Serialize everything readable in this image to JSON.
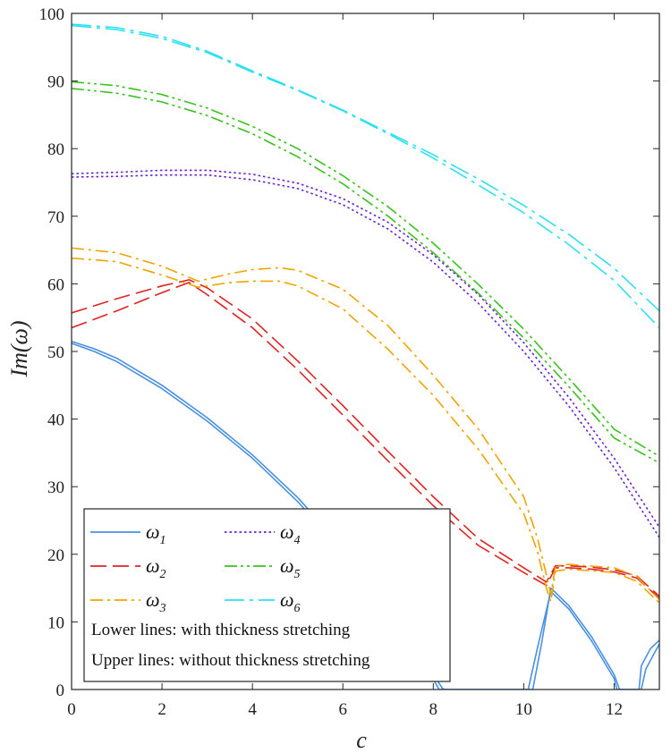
{
  "chart_data": {
    "type": "line",
    "xlabel": "c",
    "ylabel": "Im(ω)",
    "xlim": [
      0,
      13
    ],
    "ylim": [
      0,
      100
    ],
    "xticks": [
      0,
      2,
      4,
      6,
      8,
      10,
      12
    ],
    "yticks": [
      0,
      10,
      20,
      30,
      40,
      50,
      60,
      70,
      80,
      90,
      100
    ],
    "grid": false,
    "legend_position": "bottom-left",
    "notes": [
      "Lower lines: with thickness stretching",
      "Upper lines: without thickness stretching"
    ],
    "series": [
      {
        "name": "ω1",
        "symbol": "ω",
        "sub": "1",
        "color": "#4a90e2",
        "dash": "solid",
        "variant": "lower",
        "x": [
          0,
          0.5,
          1,
          2,
          3,
          4,
          5,
          6,
          7,
          7.5,
          8,
          8.13,
          8.2,
          10,
          10.1,
          10.3,
          10.6,
          11,
          11.5,
          12,
          12.06,
          12.1,
          12.6,
          12.7,
          12.9,
          13
        ],
        "y": [
          51.2,
          50,
          48.5,
          44.5,
          39.7,
          34.2,
          27.8,
          20.4,
          11.6,
          6.6,
          1.5,
          0,
          0,
          0,
          0,
          6,
          14.5,
          11.9,
          7.2,
          1.6,
          0,
          0,
          0,
          3,
          5.5,
          6.7
        ]
      },
      {
        "name": "ω1",
        "symbol": "ω",
        "sub": "1",
        "color": "#4a90e2",
        "dash": "solid",
        "variant": "upper",
        "x": [
          0,
          0.5,
          1,
          2,
          3,
          4,
          5,
          6,
          7,
          7.5,
          8,
          8.2,
          8.25,
          10,
          10.2,
          10.4,
          10.6,
          11,
          11.5,
          12,
          12.12,
          12.2,
          12.55,
          12.6,
          12.8,
          13
        ],
        "y": [
          51.5,
          50.4,
          49,
          45,
          40.2,
          34.7,
          28.4,
          21,
          12.2,
          7.2,
          2.2,
          0.2,
          0,
          0,
          0,
          7,
          15,
          12.4,
          7.8,
          2.2,
          0,
          0,
          0,
          3.5,
          6,
          7.3
        ]
      },
      {
        "name": "ω2",
        "symbol": "ω",
        "sub": "2",
        "color": "#e02222",
        "dash": "18 7",
        "variant": "lower",
        "x": [
          0,
          1,
          2,
          2.6,
          3,
          4,
          5,
          6,
          7,
          8,
          9,
          10,
          10.5,
          10.7,
          11,
          11.5,
          12,
          12.5,
          13
        ],
        "y": [
          53.5,
          56,
          58.7,
          60.2,
          58.4,
          53.5,
          47.3,
          40.6,
          33.8,
          27.2,
          21.3,
          17.3,
          15.4,
          18,
          18,
          17.8,
          17.4,
          16.5,
          13.5
        ]
      },
      {
        "name": "ω2",
        "symbol": "ω",
        "sub": "2",
        "color": "#e02222",
        "dash": "18 7",
        "variant": "upper",
        "x": [
          0,
          1,
          2,
          2.6,
          3,
          4,
          5,
          6,
          7,
          8,
          9,
          10,
          10.5,
          10.7,
          11,
          11.5,
          12,
          12.5,
          13
        ],
        "y": [
          55.7,
          57.8,
          59.7,
          60.6,
          59.4,
          54.8,
          48.6,
          42,
          35.2,
          28.5,
          22.3,
          18,
          15.9,
          18.3,
          18.3,
          18.1,
          17.7,
          16.8,
          13.8
        ]
      },
      {
        "name": "ω3",
        "symbol": "ω",
        "sub": "3",
        "color": "#f0a400",
        "dash": "14 5 3 5",
        "variant": "lower",
        "x": [
          0,
          1,
          2,
          2.8,
          3.5,
          4,
          4.6,
          5,
          6,
          7,
          8,
          9,
          10,
          10.3,
          10.5,
          10.6,
          10.7,
          11,
          12,
          12.5,
          13
        ],
        "y": [
          63.8,
          63.3,
          61.3,
          59.5,
          60.2,
          60.4,
          60.4,
          59.7,
          56.3,
          50.3,
          43.5,
          35.5,
          26,
          20.5,
          15,
          13,
          17.5,
          17.8,
          17.3,
          16,
          12.8
        ]
      },
      {
        "name": "ω3",
        "symbol": "ω",
        "sub": "3",
        "color": "#f0a400",
        "dash": "14 5 3 5",
        "variant": "upper",
        "x": [
          0,
          1,
          2,
          2.8,
          3.5,
          4,
          4.6,
          5,
          6,
          7,
          8,
          9,
          10,
          10.3,
          10.5,
          10.6,
          10.7,
          11,
          12,
          12.5,
          13
        ],
        "y": [
          65.3,
          64.6,
          62.6,
          60.4,
          61.5,
          62.1,
          62.4,
          62,
          59.2,
          53.8,
          46.5,
          38.5,
          28.5,
          22.5,
          17,
          14,
          18.3,
          18.5,
          18,
          16.7,
          13.3
        ]
      },
      {
        "name": "ω4",
        "symbol": "ω",
        "sub": "4",
        "color": "#6a1fd8",
        "dash": "2.5 3",
        "variant": "lower",
        "x": [
          0,
          1,
          2,
          3,
          4,
          5,
          6,
          7,
          8,
          9,
          10,
          11,
          12,
          13
        ],
        "y": [
          75.8,
          75.9,
          76.1,
          76.1,
          75.4,
          74.1,
          71.7,
          68.1,
          63.2,
          57.1,
          50,
          41.9,
          32.8,
          22.5
        ]
      },
      {
        "name": "ω4",
        "symbol": "ω",
        "sub": "4",
        "color": "#6a1fd8",
        "dash": "2.5 3",
        "variant": "upper",
        "x": [
          0,
          1,
          2,
          3,
          4,
          5,
          6,
          7,
          8,
          9,
          10,
          11,
          12,
          13
        ],
        "y": [
          76.3,
          76.5,
          76.8,
          76.8,
          76.2,
          74.9,
          72.6,
          69.1,
          64.3,
          58.4,
          51.3,
          43.2,
          34.2,
          24
        ]
      },
      {
        "name": "ω5",
        "symbol": "ω",
        "sub": "5",
        "color": "#39c21e",
        "dash": "14 4 3 4 3 4",
        "variant": "lower",
        "x": [
          0,
          1,
          2,
          3,
          4,
          5,
          6,
          7,
          8,
          9,
          10,
          11,
          12,
          13
        ],
        "y": [
          88.9,
          88.2,
          86.9,
          84.9,
          82.2,
          78.8,
          74.8,
          70,
          64.6,
          58.6,
          52,
          44.8,
          37.2,
          33.5
        ]
      },
      {
        "name": "ω5",
        "symbol": "ω",
        "sub": "5",
        "color": "#39c21e",
        "dash": "14 4 3 4 3 4",
        "variant": "upper",
        "x": [
          0,
          1,
          2,
          3,
          4,
          5,
          6,
          7,
          8,
          9,
          10,
          11,
          12,
          13
        ],
        "y": [
          89.9,
          89.3,
          88,
          86,
          83.3,
          80,
          76,
          71.4,
          66,
          59.9,
          53.3,
          46,
          38.5,
          34.5
        ]
      },
      {
        "name": "ω6",
        "symbol": "ω",
        "sub": "6",
        "color": "#2ee0f0",
        "dash": "22 6 4 6",
        "variant": "lower",
        "x": [
          0,
          1,
          2,
          3,
          4,
          5,
          6,
          7,
          8,
          9,
          10,
          11,
          12,
          13
        ],
        "y": [
          98.2,
          97.6,
          96.3,
          94.2,
          91.3,
          88.6,
          85.6,
          82.2,
          78.6,
          74.6,
          70.5,
          65.8,
          60.5,
          53.5
        ]
      },
      {
        "name": "ω6",
        "symbol": "ω",
        "sub": "6",
        "color": "#2ee0f0",
        "dash": "22 6 4 6",
        "variant": "upper",
        "x": [
          0,
          1,
          2,
          3,
          4,
          5,
          6,
          7,
          8,
          9,
          10,
          11,
          12,
          13
        ],
        "y": [
          98.4,
          97.9,
          96.6,
          94.4,
          91.5,
          88.7,
          85.7,
          82.4,
          79.1,
          75.5,
          71.6,
          67.3,
          62.3,
          56
        ]
      }
    ]
  }
}
